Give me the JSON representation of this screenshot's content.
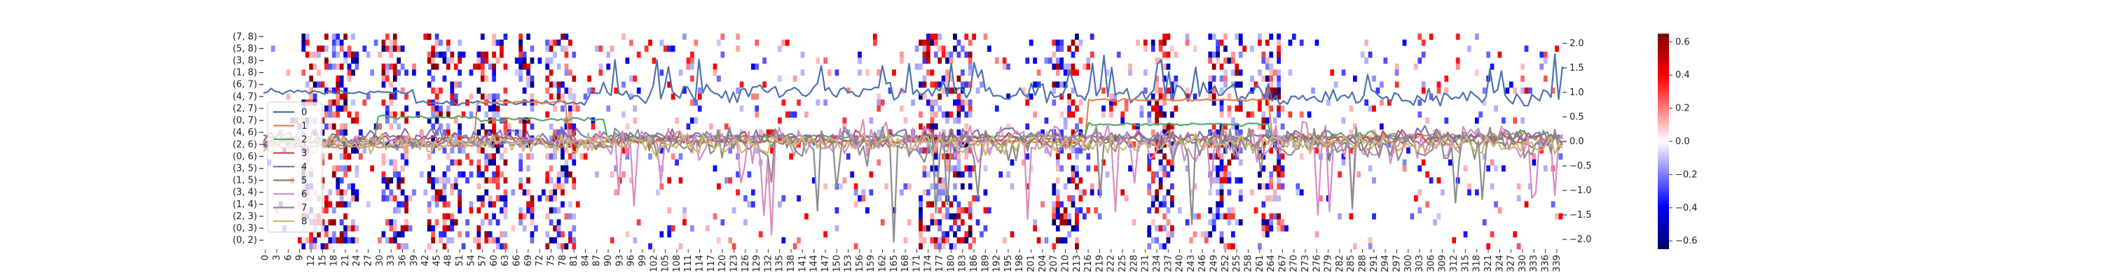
{
  "chart_data": [
    {
      "type": "heatmap",
      "title": "",
      "xlabel": "",
      "ylabel": "",
      "y_tick_labels": [
        "(7, 8)",
        "(5, 8)",
        "(3, 8)",
        "(1, 8)",
        "(6, 7)",
        "(4, 7)",
        "(2, 7)",
        "(0, 7)",
        "(4, 6)",
        "(2, 6)",
        "(0, 6)",
        "(3, 5)",
        "(1, 5)",
        "(3, 4)",
        "(1, 4)",
        "(2, 3)",
        "(0, 3)",
        "(0, 2)"
      ],
      "y_rows_between_ticks": 2,
      "n_rows": 36,
      "n_columns": 341,
      "x_tick_labels": [
        "0",
        "3",
        "6",
        "9",
        "12",
        "15",
        "18",
        "21",
        "24",
        "27",
        "30",
        "33",
        "36",
        "39",
        "42",
        "45",
        "48",
        "51",
        "54",
        "57",
        "60",
        "63",
        "66",
        "69",
        "72",
        "75",
        "78",
        "81",
        "84",
        "87",
        "90",
        "93",
        "96",
        "99",
        "102",
        "105",
        "108",
        "111",
        "114",
        "117",
        "120",
        "123",
        "126",
        "129",
        "132",
        "135",
        "138",
        "141",
        "144",
        "147",
        "150",
        "153",
        "156",
        "159",
        "162",
        "165",
        "168",
        "171",
        "174",
        "177",
        "180",
        "183",
        "186",
        "189",
        "192",
        "195",
        "198",
        "201",
        "204",
        "207",
        "210",
        "213",
        "216",
        "219",
        "222",
        "225",
        "228",
        "231",
        "234",
        "237",
        "240",
        "243",
        "246",
        "249",
        "252",
        "255",
        "258",
        "261",
        "264",
        "267",
        "270",
        "273",
        "276",
        "279",
        "282",
        "285",
        "288",
        "291",
        "294",
        "297",
        "300",
        "303",
        "306",
        "309",
        "312",
        "315",
        "318",
        "321",
        "324",
        "327",
        "330",
        "333",
        "336",
        "339"
      ],
      "dense_column_ranges": [
        [
          10,
          24
        ],
        [
          31,
          37
        ],
        [
          43,
          51
        ],
        [
          56,
          63
        ],
        [
          67,
          70
        ],
        [
          74,
          81
        ],
        [
          172,
          185
        ],
        [
          207,
          214
        ],
        [
          232,
          238
        ],
        [
          248,
          256
        ],
        [
          261,
          266
        ]
      ],
      "color_scale": {
        "min": -0.65,
        "max": 0.65,
        "low_color": "#000066",
        "mid_color": "#ffffff",
        "high_color": "#7f0000"
      },
      "colorbar_ticks": [
        "0.6",
        "0.4",
        "0.2",
        "0.0",
        "−0.2",
        "−0.4",
        "−0.6"
      ]
    },
    {
      "type": "line",
      "x_range": [
        0,
        340
      ],
      "ylim": [
        -2.2,
        2.2
      ],
      "right_axis_ticks": [
        "2.0",
        "1.5",
        "1.0",
        "0.5",
        "0.0",
        "−0.5",
        "−1.0",
        "−1.5",
        "−2.0"
      ],
      "legend_position": "left",
      "series": [
        {
          "name": "0",
          "color": "#4c72b0",
          "style": "level-jumps-then-noisy",
          "baseline_segments": [
            [
              0,
              40,
              1.0
            ],
            [
              40,
              85,
              0.78
            ],
            [
              85,
              264,
              1.0
            ],
            [
              264,
              340,
              0.9
            ]
          ],
          "noise": 0.3
        },
        {
          "name": "1",
          "color": "#dd8452",
          "style": "levels",
          "baseline_segments": [
            [
              0,
              56,
              -0.1
            ],
            [
              56,
              80,
              0.8
            ],
            [
              80,
              216,
              0.0
            ],
            [
              216,
              264,
              0.85
            ],
            [
              264,
              340,
              0.1
            ]
          ],
          "noise": 0.12
        },
        {
          "name": "2",
          "color": "#55a868",
          "style": "levels",
          "baseline_segments": [
            [
              0,
              30,
              0.0
            ],
            [
              30,
              56,
              0.5
            ],
            [
              56,
              90,
              0.45
            ],
            [
              90,
              216,
              0.1
            ],
            [
              216,
              264,
              0.35
            ],
            [
              264,
              340,
              0.1
            ]
          ],
          "noise": 0.15
        },
        {
          "name": "3",
          "color": "#c44e52",
          "style": "noisy",
          "baseline_segments": [
            [
              0,
              340,
              0.05
            ]
          ],
          "noise": 0.2
        },
        {
          "name": "4",
          "color": "#8172b3",
          "style": "noisy",
          "baseline_segments": [
            [
              0,
              340,
              0.1
            ]
          ],
          "noise": 0.25
        },
        {
          "name": "5",
          "color": "#937860",
          "style": "noisy",
          "baseline_segments": [
            [
              0,
              340,
              0.0
            ]
          ],
          "noise": 0.22
        },
        {
          "name": "6",
          "color": "#da8bc3",
          "style": "spiky",
          "baseline_segments": [
            [
              0,
              85,
              0.0
            ],
            [
              85,
              340,
              0.0
            ]
          ],
          "noise": 0.55
        },
        {
          "name": "7",
          "color": "#8c8c8c",
          "style": "spiky",
          "baseline_segments": [
            [
              0,
              340,
              -0.05
            ]
          ],
          "noise": 0.5
        },
        {
          "name": "8",
          "color": "#ccb974",
          "style": "noisy",
          "baseline_segments": [
            [
              0,
              340,
              -0.05
            ]
          ],
          "noise": 0.3
        }
      ]
    }
  ]
}
